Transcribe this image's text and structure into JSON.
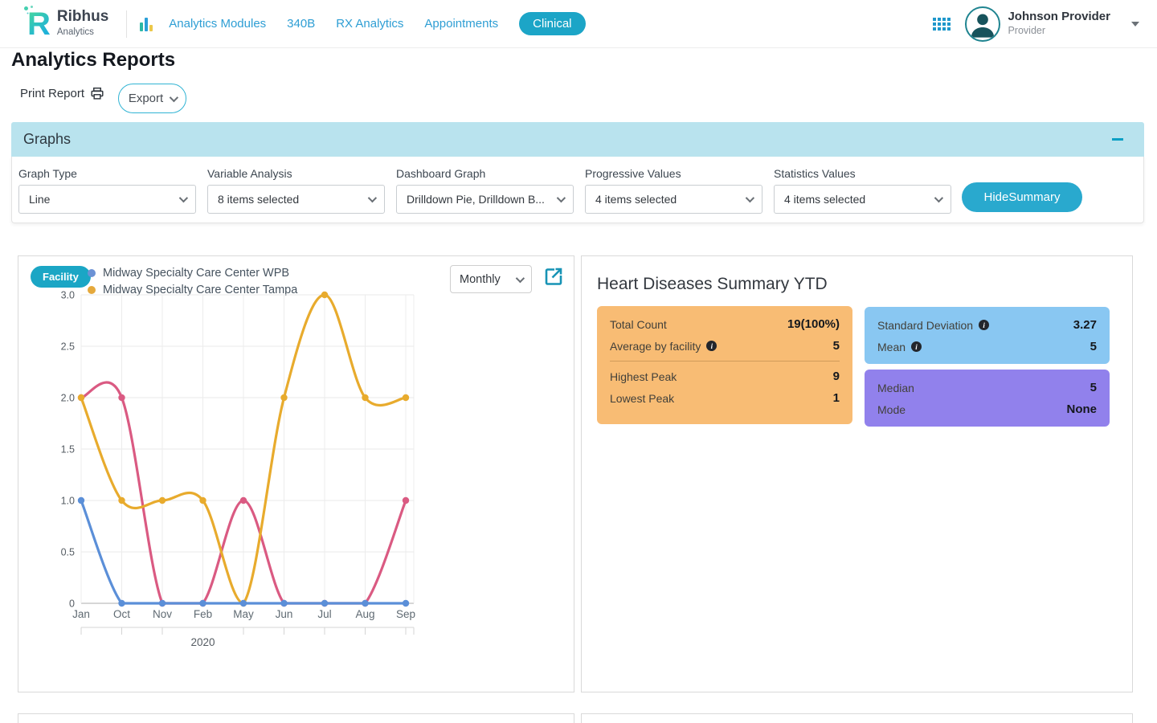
{
  "theme": {
    "accent": "#1ca5c7"
  },
  "header": {
    "brand": {
      "logo_letter": "R",
      "name": "Ribhus",
      "subtitle": "Analytics"
    },
    "nav": {
      "items": [
        {
          "label": "Analytics Modules"
        },
        {
          "label": "340B"
        },
        {
          "label": "RX Analytics"
        },
        {
          "label": "Appointments"
        },
        {
          "label": "Clinical"
        }
      ]
    },
    "user": {
      "name": "Johnson Provider",
      "role": "Provider"
    }
  },
  "page": {
    "title": "Analytics Reports",
    "print_label": "Print Report",
    "export_label": "Export"
  },
  "graphs_section": {
    "title": "Graphs",
    "filters": [
      {
        "label": "Graph Type",
        "value": "Line"
      },
      {
        "label": "Variable Analysis",
        "value": "8 items selected"
      },
      {
        "label": "Dashboard Graph",
        "value": "Drilldown Pie, Drilldown B..."
      },
      {
        "label": "Progressive Values",
        "value": "4 items selected"
      },
      {
        "label": "Statistics Values",
        "value": "4 items selected"
      }
    ],
    "hide_summary_label": "HideSummary"
  },
  "chart_panel": {
    "facility_badge": "Facility",
    "period_selector": "Monthly",
    "legend": [
      {
        "label": "Midway Specialty Care Center WPB",
        "color": "#6c92d5"
      },
      {
        "label": "Midway Specialty Care Center Tampa",
        "color": "#e5a93c"
      }
    ]
  },
  "chart_data": {
    "type": "line",
    "categories": [
      "Jan",
      "Oct",
      "Nov",
      "Feb",
      "May",
      "Jun",
      "Jul",
      "Aug",
      "Sep"
    ],
    "x_group_label": "2020",
    "ylim": [
      0,
      3
    ],
    "yticks": [
      3.0,
      2.5,
      2.0,
      1.5,
      1.0,
      0.5,
      0
    ],
    "ytick_labels": [
      "3.0",
      "2.5",
      "2.0",
      "1.5",
      "1.0",
      "0.5",
      "0"
    ],
    "grid": true,
    "legend_position": "top-left",
    "series": [
      {
        "name": "Midway Specialty Care Center WPB",
        "color": "#5b8fd8",
        "values": [
          1,
          0,
          0,
          0,
          0,
          0,
          0,
          0,
          0
        ]
      },
      {
        "name": "Midway Specialty Care Center Tampa",
        "color": "#e8ab2d",
        "values": [
          2,
          1,
          1,
          1,
          0,
          2,
          3,
          2,
          2
        ]
      },
      {
        "name": "",
        "color": "#da5a82",
        "values": [
          2,
          2,
          0,
          0,
          1,
          0,
          0,
          0,
          1
        ]
      }
    ]
  },
  "summary_panel": {
    "title": "Heart Diseases Summary YTD",
    "cards": {
      "counts": {
        "color": "#f8bc74",
        "rows": [
          {
            "label": "Total Count",
            "value": "19(100%)"
          },
          {
            "label": "Average by facility",
            "value": "5"
          },
          {
            "label": "Highest Peak",
            "value": "9"
          },
          {
            "label": "Lowest Peak",
            "value": "1"
          }
        ]
      },
      "stats": {
        "color": "#89c7f2",
        "rows": [
          {
            "label": "Standard Deviation",
            "value": "3.27"
          },
          {
            "label": "Mean",
            "value": "5"
          }
        ]
      },
      "central": {
        "color": "#9181ec",
        "rows": [
          {
            "label": "Median",
            "value": "5"
          },
          {
            "label": "Mode",
            "value": "None"
          }
        ]
      }
    }
  }
}
